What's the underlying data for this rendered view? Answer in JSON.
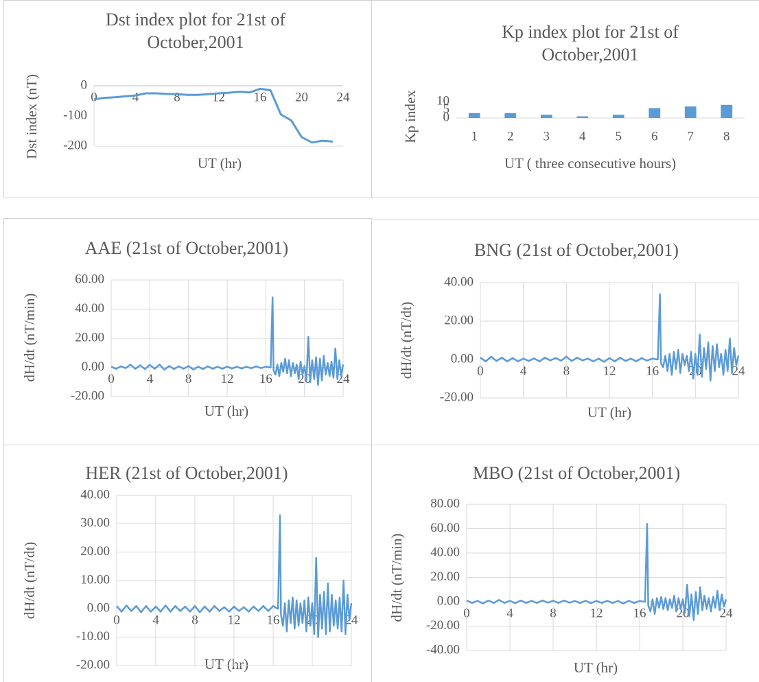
{
  "chart_data": [
    {
      "type": "line",
      "title": "Dst index plot for 21st of October,2001",
      "xlabel": "UT (hr)",
      "ylabel": "Dst index (nT)",
      "x": [
        0,
        1,
        2,
        3,
        4,
        5,
        6,
        7,
        8,
        9,
        10,
        11,
        12,
        13,
        14,
        15,
        16,
        17,
        18,
        19,
        20,
        21,
        22,
        23
      ],
      "values": [
        -45,
        -40,
        -38,
        -35,
        -32,
        -25,
        -25,
        -27,
        -28,
        -30,
        -30,
        -28,
        -25,
        -23,
        -20,
        -22,
        -10,
        -15,
        -95,
        -115,
        -170,
        -188,
        -182,
        -185
      ],
      "color": "#5b9bd5",
      "xlim": [
        0,
        24
      ],
      "ylim": [
        -200,
        0
      ],
      "xticks": [
        0,
        4,
        8,
        12,
        16,
        20,
        24
      ],
      "yticks": [
        0,
        -100,
        -200
      ],
      "grid": false
    },
    {
      "type": "bar",
      "title": "Kp index plot for 21st of October,2001",
      "xlabel": "UT ( three consecutive hours)",
      "ylabel": "Kp index",
      "categories": [
        "1",
        "2",
        "3",
        "4",
        "5",
        "6",
        "7",
        "8"
      ],
      "values": [
        3,
        3,
        2,
        1,
        2,
        6,
        7,
        8
      ],
      "color": "#5b9bd5",
      "ylim": [
        0,
        10
      ],
      "yticks": [
        0,
        5,
        10
      ],
      "grid": false
    },
    {
      "type": "line",
      "title": "AAE (21st of October,2001)",
      "xlabel": "UT (hr)",
      "ylabel": "dH/dt (nT/min)",
      "x": [
        0,
        0.5,
        1,
        1.5,
        2,
        2.5,
        3,
        3.5,
        4,
        4.5,
        5,
        5.5,
        6,
        6.5,
        7,
        7.5,
        8,
        8.5,
        9,
        9.5,
        10,
        10.5,
        11,
        11.5,
        12,
        12.5,
        13,
        13.5,
        14,
        14.5,
        15,
        15.5,
        16,
        16.5,
        16.7,
        16.8,
        17,
        17.2,
        17.4,
        17.6,
        17.8,
        18,
        18.2,
        18.4,
        18.6,
        18.8,
        19,
        19.2,
        19.4,
        19.6,
        19.8,
        20,
        20.2,
        20.4,
        20.6,
        20.8,
        21,
        21.2,
        21.4,
        21.6,
        21.8,
        22,
        22.2,
        22.4,
        22.6,
        22.8,
        23,
        23.2,
        23.4,
        23.6,
        23.8,
        24
      ],
      "values": [
        0.5,
        -1,
        0.8,
        -0.5,
        2,
        -1,
        1.5,
        -1.2,
        1.8,
        -1,
        2,
        -1.5,
        1,
        -1.2,
        0.8,
        -1,
        1,
        -1.5,
        0.5,
        -1.2,
        0.8,
        -1,
        0.5,
        -1,
        0.6,
        -0.8,
        0.5,
        -0.8,
        0.5,
        -0.6,
        0.8,
        -0.5,
        0.5,
        0,
        48,
        -2,
        -5,
        2,
        -6,
        3,
        -3,
        6,
        -4,
        5,
        -6,
        3,
        -4,
        2,
        -8,
        4,
        -5,
        1,
        -9,
        21,
        -10,
        5,
        -8,
        7,
        -12,
        6,
        -9,
        8,
        -5,
        3,
        -6,
        4,
        -7,
        13,
        -8,
        5,
        -6,
        2
      ],
      "color": "#5b9bd5",
      "xlim": [
        0,
        24
      ],
      "ylim": [
        -20,
        60
      ],
      "xticks": [
        0,
        4,
        8,
        12,
        16,
        20,
        24
      ],
      "yticks": [
        {
          "value": 60,
          "label": "60.00"
        },
        {
          "value": 40,
          "label": "40.00"
        },
        {
          "value": 20,
          "label": "20.00"
        },
        {
          "value": 0,
          "label": "0.00"
        },
        {
          "value": -20,
          "label": "-20.00"
        }
      ],
      "grid": true
    },
    {
      "type": "line",
      "title": "BNG (21st of October,2001)",
      "xlabel": "UT (hr)",
      "ylabel": "dH/dt (nT/dt)",
      "x": [
        0,
        0.5,
        1,
        1.5,
        2,
        2.5,
        3,
        3.5,
        4,
        4.5,
        5,
        5.5,
        6,
        6.5,
        7,
        7.5,
        8,
        8.5,
        9,
        9.5,
        10,
        10.5,
        11,
        11.5,
        12,
        12.5,
        13,
        13.5,
        14,
        14.5,
        15,
        15.5,
        16,
        16.5,
        16.7,
        16.8,
        17,
        17.2,
        17.4,
        17.6,
        17.8,
        18,
        18.2,
        18.4,
        18.6,
        18.8,
        19,
        19.2,
        19.4,
        19.6,
        19.8,
        20,
        20.2,
        20.4,
        20.6,
        20.8,
        21,
        21.2,
        21.4,
        21.6,
        21.8,
        22,
        22.2,
        22.4,
        22.6,
        22.8,
        23,
        23.2,
        23.4,
        23.6,
        23.8,
        24
      ],
      "values": [
        1,
        -1,
        1.5,
        -0.8,
        1,
        -1,
        0.8,
        -1,
        0.5,
        -0.8,
        0.6,
        -1,
        1,
        -0.5,
        0.8,
        -0.6,
        1.5,
        -0.8,
        1,
        -0.5,
        0.5,
        -1,
        0.5,
        -1.2,
        0.8,
        -1,
        1,
        -0.8,
        0.5,
        -1,
        0.8,
        -0.6,
        0.5,
        0,
        34,
        -2,
        -4,
        2,
        -6,
        3,
        -8,
        4,
        -5,
        5,
        -7,
        3,
        -3,
        2,
        -6,
        4,
        -10,
        3,
        -8,
        13,
        -9,
        6,
        -5,
        9,
        -11,
        7,
        -6,
        8,
        -4,
        3,
        -8,
        5,
        -6,
        11,
        -7,
        6,
        -3,
        2
      ],
      "color": "#5b9bd5",
      "xlim": [
        0,
        24
      ],
      "ylim": [
        -20,
        40
      ],
      "xticks": [
        0,
        4,
        8,
        12,
        16,
        20,
        24
      ],
      "yticks": [
        {
          "value": 40,
          "label": "40.00"
        },
        {
          "value": 20,
          "label": "20.00"
        },
        {
          "value": 0,
          "label": "0.00"
        },
        {
          "value": -20,
          "label": "-20.00"
        }
      ],
      "grid": true
    },
    {
      "type": "line",
      "title": "HER (21st of October,2001)",
      "xlabel": "UT (hr)",
      "ylabel": "dH/dt (nT/dt)",
      "x": [
        0,
        0.5,
        1,
        1.5,
        2,
        2.5,
        3,
        3.5,
        4,
        4.5,
        5,
        5.5,
        6,
        6.5,
        7,
        7.5,
        8,
        8.5,
        9,
        9.5,
        10,
        10.5,
        11,
        11.5,
        12,
        12.5,
        13,
        13.5,
        14,
        14.5,
        15,
        15.5,
        16,
        16.5,
        16.7,
        16.8,
        17,
        17.2,
        17.4,
        17.6,
        17.8,
        18,
        18.2,
        18.4,
        18.6,
        18.8,
        19,
        19.2,
        19.4,
        19.6,
        19.8,
        20,
        20.2,
        20.4,
        20.6,
        20.8,
        21,
        21.2,
        21.4,
        21.6,
        21.8,
        22,
        22.2,
        22.4,
        22.6,
        22.8,
        23,
        23.2,
        23.4,
        23.6,
        23.8,
        24
      ],
      "values": [
        1,
        -1,
        1.2,
        -0.8,
        1,
        -1.2,
        1,
        -1,
        0.8,
        -1,
        1.2,
        -1,
        1,
        -0.8,
        0.8,
        -1,
        1,
        -1.2,
        0.8,
        -1,
        1,
        -0.8,
        0.6,
        -1,
        0.8,
        -0.8,
        0.6,
        -1,
        0.8,
        -0.8,
        1,
        -0.8,
        1,
        0,
        33,
        -2,
        -6,
        2,
        -8,
        3,
        -5,
        4,
        -7,
        3,
        -6,
        2,
        -5,
        3,
        -8,
        4,
        -6,
        2,
        -9,
        18,
        -10,
        5,
        -7,
        6,
        -9,
        9,
        -8,
        5,
        -6,
        3,
        -7,
        4,
        -8,
        10,
        -9,
        5,
        -4,
        2
      ],
      "color": "#5b9bd5",
      "xlim": [
        0,
        24
      ],
      "ylim": [
        -20,
        40
      ],
      "xticks": [
        0,
        4,
        8,
        12,
        16,
        20,
        24
      ],
      "yticks": [
        {
          "value": 40,
          "label": "40.00"
        },
        {
          "value": 30,
          "label": "30.00"
        },
        {
          "value": 20,
          "label": "20.00"
        },
        {
          "value": 10,
          "label": "10.00"
        },
        {
          "value": 0,
          "label": "0.00"
        },
        {
          "value": -10,
          "label": "-10.00"
        },
        {
          "value": -20,
          "label": "-20.00"
        }
      ],
      "grid": true
    },
    {
      "type": "line",
      "title": "MBO (21st of October,2001)",
      "xlabel": "UT (hr)",
      "ylabel": "dH/dt (nT/min)",
      "x": [
        0,
        0.5,
        1,
        1.5,
        2,
        2.5,
        3,
        3.5,
        4,
        4.5,
        5,
        5.5,
        6,
        6.5,
        7,
        7.5,
        8,
        8.5,
        9,
        9.5,
        10,
        10.5,
        11,
        11.5,
        12,
        12.5,
        13,
        13.5,
        14,
        14.5,
        15,
        15.5,
        16,
        16.5,
        16.7,
        16.8,
        17,
        17.2,
        17.4,
        17.6,
        17.8,
        18,
        18.2,
        18.4,
        18.6,
        18.8,
        19,
        19.2,
        19.4,
        19.6,
        19.8,
        20,
        20.2,
        20.4,
        20.6,
        20.8,
        21,
        21.2,
        21.4,
        21.6,
        21.8,
        22,
        22.2,
        22.4,
        22.6,
        22.8,
        23,
        23.2,
        23.4,
        23.6,
        23.8,
        24
      ],
      "values": [
        1,
        -1,
        0.8,
        -1.5,
        1,
        -1,
        1.5,
        -1,
        0.8,
        -1.2,
        1,
        -1,
        0.8,
        -1,
        1,
        -0.8,
        0.8,
        -1,
        1,
        -0.8,
        0.6,
        -1,
        0.8,
        -1.2,
        0.6,
        -1,
        0.8,
        -1,
        0.6,
        -1.5,
        0.8,
        -1,
        0.5,
        0,
        64,
        -3,
        -8,
        2,
        -10,
        3,
        -5,
        4,
        -6,
        3,
        -7,
        2,
        -5,
        5,
        -8,
        3,
        -6,
        2,
        -9,
        14,
        -12,
        6,
        -15,
        8,
        -10,
        12,
        -7,
        5,
        -6,
        3,
        -8,
        4,
        -5,
        9,
        -7,
        6,
        -4,
        2
      ],
      "color": "#5b9bd5",
      "xlim": [
        0,
        24
      ],
      "ylim": [
        -40,
        80
      ],
      "xticks": [
        0,
        4,
        8,
        12,
        16,
        20,
        24
      ],
      "yticks": [
        {
          "value": 80,
          "label": "80.00"
        },
        {
          "value": 60,
          "label": "60.00"
        },
        {
          "value": 40,
          "label": "40.00"
        },
        {
          "value": 20,
          "label": "20.00"
        },
        {
          "value": 0,
          "label": "0.00"
        },
        {
          "value": -20,
          "label": "-20.00"
        },
        {
          "value": -40,
          "label": "-40.00"
        }
      ],
      "grid": true
    }
  ]
}
